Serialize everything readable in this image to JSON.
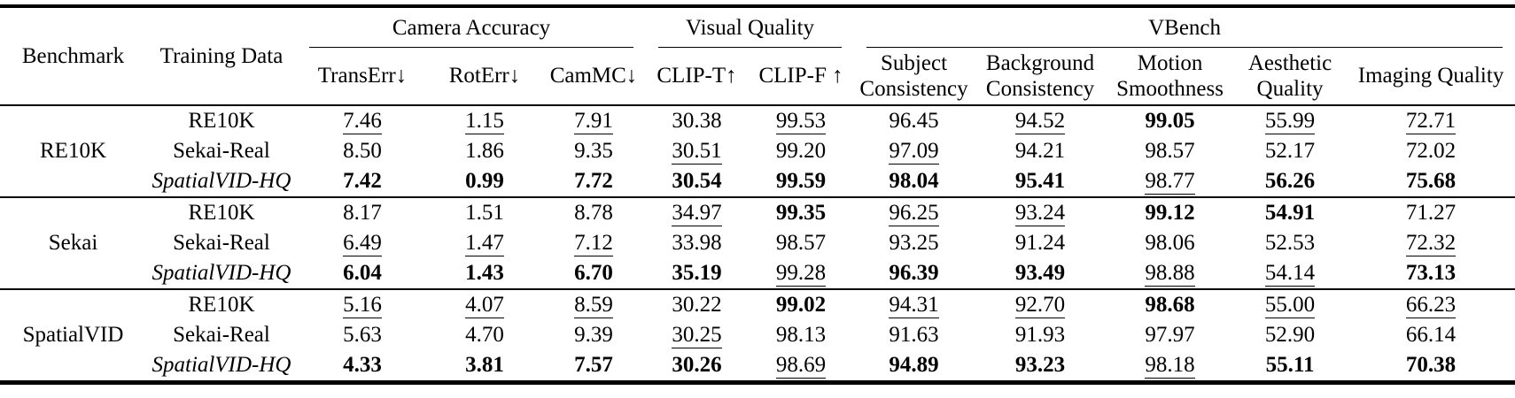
{
  "table": {
    "col_headers": {
      "benchmark": "Benchmark",
      "training_data": "Training Data",
      "groups": [
        {
          "label": "Camera Accuracy",
          "cols": [
            "TransErr↓",
            "RotErr↓",
            "CamMC↓"
          ]
        },
        {
          "label": "Visual Quality",
          "cols": [
            "CLIP-T↑",
            "CLIP-F ↑"
          ]
        },
        {
          "label": "VBench",
          "cols": [
            "Subject Consistency",
            "Background Consistency",
            "Motion Smoothness",
            "Aesthetic Quality",
            "Imaging Quality"
          ]
        }
      ]
    },
    "style_legend": {
      "b": "bold-best",
      "u": "underline-second-best",
      "p": "plain"
    },
    "blocks": [
      {
        "benchmark": "RE10K",
        "rows": [
          {
            "training": "RE10K",
            "italic": false,
            "values": [
              {
                "v": "7.46",
                "s": "u"
              },
              {
                "v": "1.15",
                "s": "u"
              },
              {
                "v": "7.91",
                "s": "u"
              },
              {
                "v": "30.38",
                "s": "p"
              },
              {
                "v": "99.53",
                "s": "u"
              },
              {
                "v": "96.45",
                "s": "p"
              },
              {
                "v": "94.52",
                "s": "u"
              },
              {
                "v": "99.05",
                "s": "b"
              },
              {
                "v": "55.99",
                "s": "u"
              },
              {
                "v": "72.71",
                "s": "u"
              }
            ]
          },
          {
            "training": "Sekai-Real",
            "italic": false,
            "values": [
              {
                "v": "8.50",
                "s": "p"
              },
              {
                "v": "1.86",
                "s": "p"
              },
              {
                "v": "9.35",
                "s": "p"
              },
              {
                "v": "30.51",
                "s": "u"
              },
              {
                "v": "99.20",
                "s": "p"
              },
              {
                "v": "97.09",
                "s": "u"
              },
              {
                "v": "94.21",
                "s": "p"
              },
              {
                "v": "98.57",
                "s": "p"
              },
              {
                "v": "52.17",
                "s": "p"
              },
              {
                "v": "72.02",
                "s": "p"
              }
            ]
          },
          {
            "training": "SpatialVID-HQ",
            "italic": true,
            "values": [
              {
                "v": "7.42",
                "s": "b"
              },
              {
                "v": "0.99",
                "s": "b"
              },
              {
                "v": "7.72",
                "s": "b"
              },
              {
                "v": "30.54",
                "s": "b"
              },
              {
                "v": "99.59",
                "s": "b"
              },
              {
                "v": "98.04",
                "s": "b"
              },
              {
                "v": "95.41",
                "s": "b"
              },
              {
                "v": "98.77",
                "s": "u"
              },
              {
                "v": "56.26",
                "s": "b"
              },
              {
                "v": "75.68",
                "s": "b"
              }
            ]
          }
        ]
      },
      {
        "benchmark": "Sekai",
        "rows": [
          {
            "training": "RE10K",
            "italic": false,
            "values": [
              {
                "v": "8.17",
                "s": "p"
              },
              {
                "v": "1.51",
                "s": "p"
              },
              {
                "v": "8.78",
                "s": "p"
              },
              {
                "v": "34.97",
                "s": "u"
              },
              {
                "v": "99.35",
                "s": "b"
              },
              {
                "v": "96.25",
                "s": "u"
              },
              {
                "v": "93.24",
                "s": "u"
              },
              {
                "v": "99.12",
                "s": "b"
              },
              {
                "v": "54.91",
                "s": "b"
              },
              {
                "v": "71.27",
                "s": "p"
              }
            ]
          },
          {
            "training": "Sekai-Real",
            "italic": false,
            "values": [
              {
                "v": "6.49",
                "s": "u"
              },
              {
                "v": "1.47",
                "s": "u"
              },
              {
                "v": "7.12",
                "s": "u"
              },
              {
                "v": "33.98",
                "s": "p"
              },
              {
                "v": "98.57",
                "s": "p"
              },
              {
                "v": "93.25",
                "s": "p"
              },
              {
                "v": "91.24",
                "s": "p"
              },
              {
                "v": "98.06",
                "s": "p"
              },
              {
                "v": "52.53",
                "s": "p"
              },
              {
                "v": "72.32",
                "s": "u"
              }
            ]
          },
          {
            "training": "SpatialVID-HQ",
            "italic": true,
            "values": [
              {
                "v": "6.04",
                "s": "b"
              },
              {
                "v": "1.43",
                "s": "b"
              },
              {
                "v": "6.70",
                "s": "b"
              },
              {
                "v": "35.19",
                "s": "b"
              },
              {
                "v": "99.28",
                "s": "u"
              },
              {
                "v": "96.39",
                "s": "b"
              },
              {
                "v": "93.49",
                "s": "b"
              },
              {
                "v": "98.88",
                "s": "u"
              },
              {
                "v": "54.14",
                "s": "u"
              },
              {
                "v": "73.13",
                "s": "b"
              }
            ]
          }
        ]
      },
      {
        "benchmark": "SpatialVID",
        "rows": [
          {
            "training": "RE10K",
            "italic": false,
            "values": [
              {
                "v": "5.16",
                "s": "u"
              },
              {
                "v": "4.07",
                "s": "u"
              },
              {
                "v": "8.59",
                "s": "u"
              },
              {
                "v": "30.22",
                "s": "p"
              },
              {
                "v": "99.02",
                "s": "b"
              },
              {
                "v": "94.31",
                "s": "u"
              },
              {
                "v": "92.70",
                "s": "u"
              },
              {
                "v": "98.68",
                "s": "b"
              },
              {
                "v": "55.00",
                "s": "u"
              },
              {
                "v": "66.23",
                "s": "u"
              }
            ]
          },
          {
            "training": "Sekai-Real",
            "italic": false,
            "values": [
              {
                "v": "5.63",
                "s": "p"
              },
              {
                "v": "4.70",
                "s": "p"
              },
              {
                "v": "9.39",
                "s": "p"
              },
              {
                "v": "30.25",
                "s": "u"
              },
              {
                "v": "98.13",
                "s": "p"
              },
              {
                "v": "91.63",
                "s": "p"
              },
              {
                "v": "91.93",
                "s": "p"
              },
              {
                "v": "97.97",
                "s": "p"
              },
              {
                "v": "52.90",
                "s": "p"
              },
              {
                "v": "66.14",
                "s": "p"
              }
            ]
          },
          {
            "training": "SpatialVID-HQ",
            "italic": true,
            "values": [
              {
                "v": "4.33",
                "s": "b"
              },
              {
                "v": "3.81",
                "s": "b"
              },
              {
                "v": "7.57",
                "s": "b"
              },
              {
                "v": "30.26",
                "s": "b"
              },
              {
                "v": "98.69",
                "s": "u"
              },
              {
                "v": "94.89",
                "s": "b"
              },
              {
                "v": "93.23",
                "s": "b"
              },
              {
                "v": "98.18",
                "s": "u"
              },
              {
                "v": "55.11",
                "s": "b"
              },
              {
                "v": "70.38",
                "s": "b"
              }
            ]
          }
        ]
      }
    ]
  }
}
